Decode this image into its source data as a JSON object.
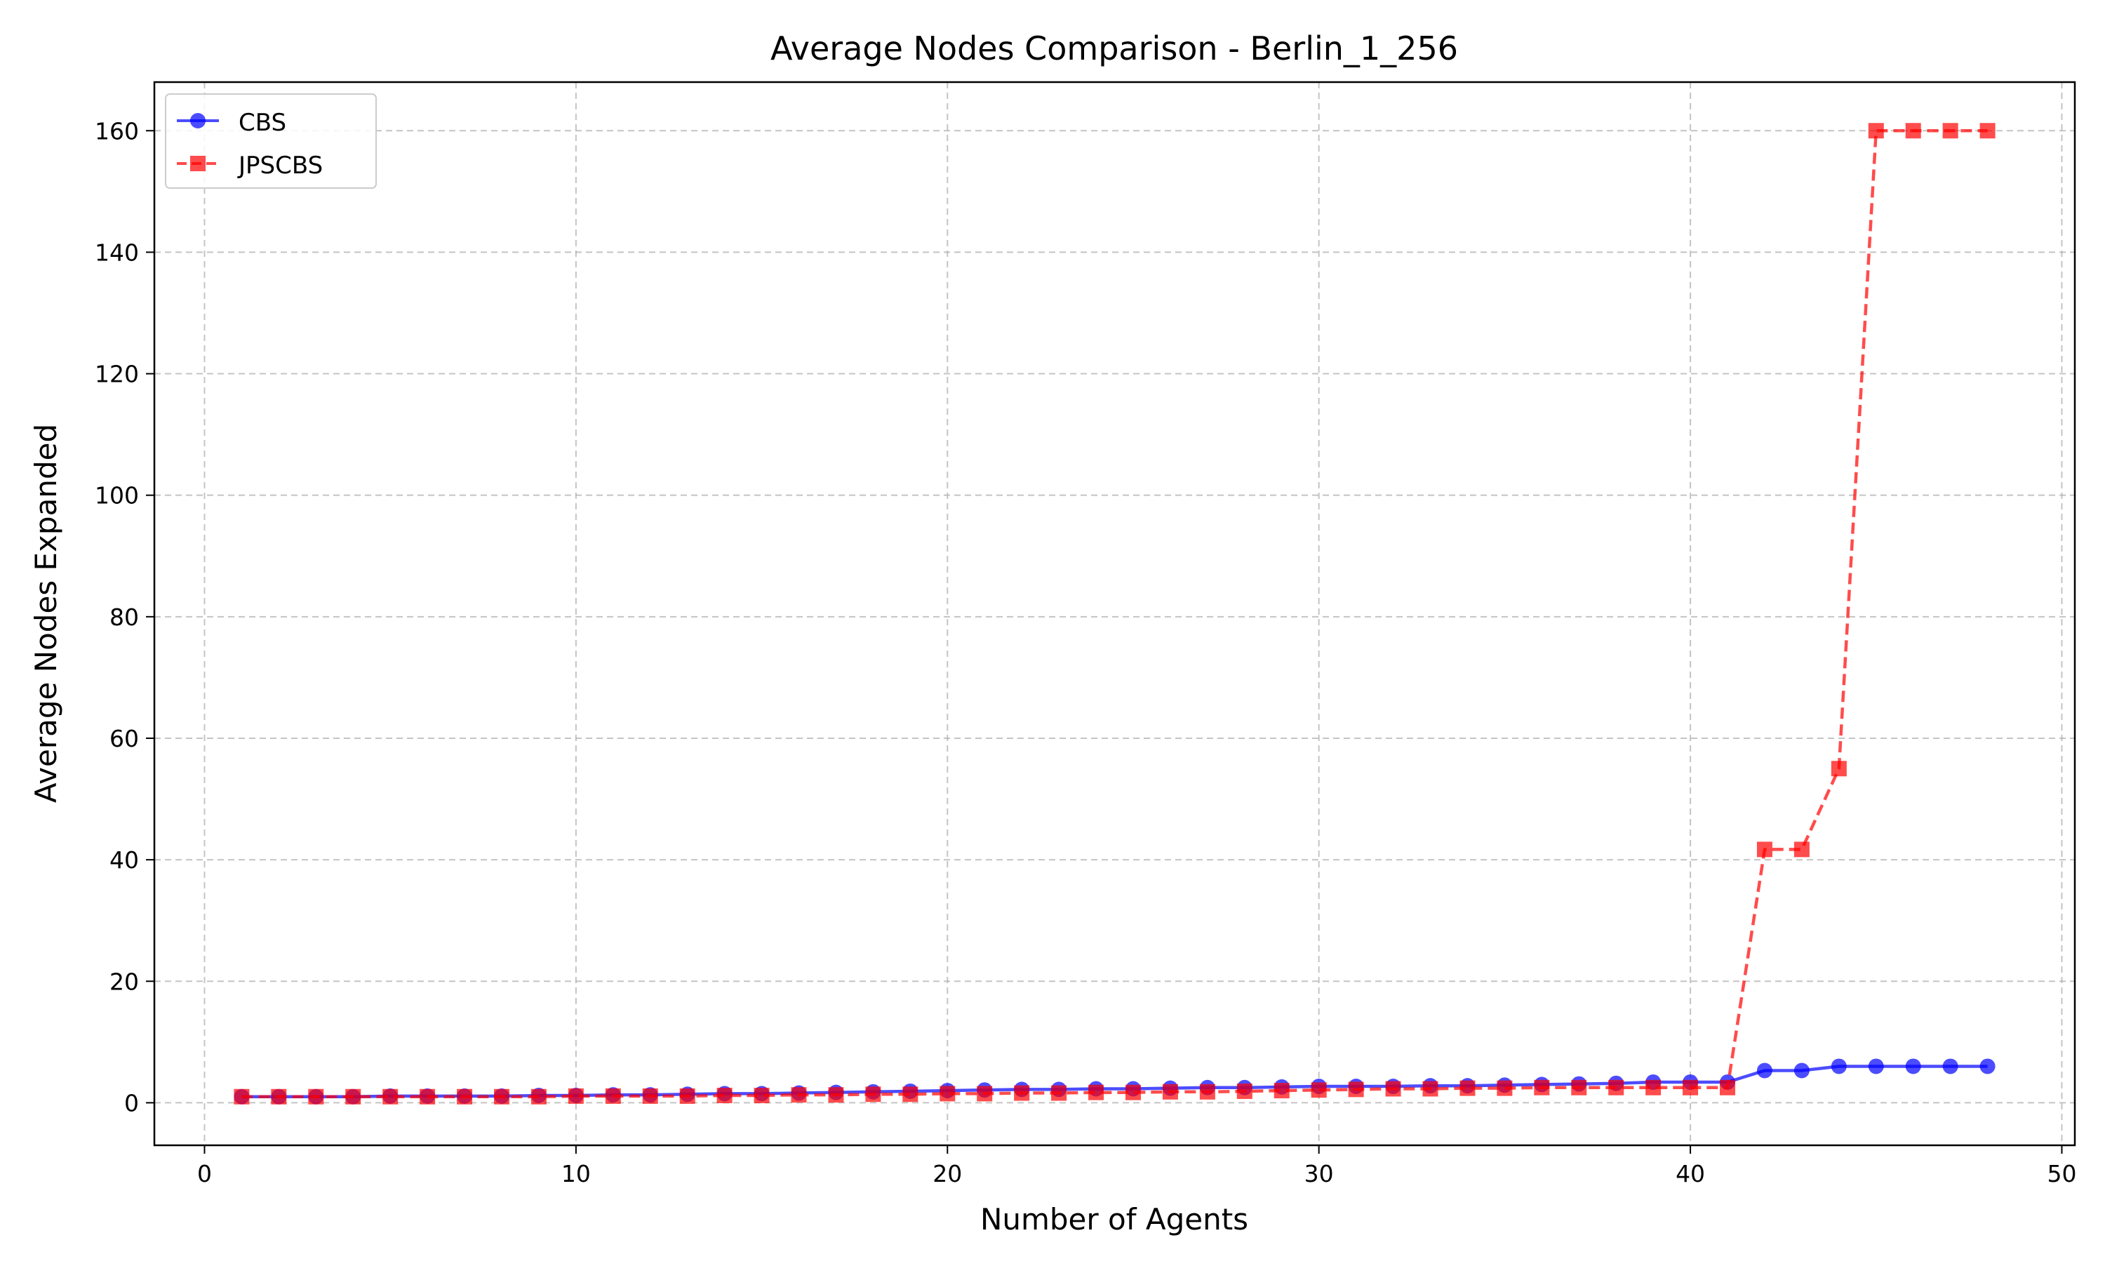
{
  "chart_data": {
    "type": "line",
    "title": "Average Nodes Comparison - Berlin_1_256",
    "xlabel": "Number of Agents",
    "ylabel": "Average Nodes Expanded",
    "xlim": [
      -1.35,
      50.35
    ],
    "ylim": [
      -7,
      168
    ],
    "xticks": [
      0,
      10,
      20,
      30,
      40,
      50
    ],
    "yticks": [
      0,
      20,
      40,
      60,
      80,
      100,
      120,
      140,
      160
    ],
    "grid": true,
    "legend_position": "top-left",
    "x": [
      1,
      2,
      3,
      4,
      5,
      6,
      7,
      8,
      9,
      10,
      11,
      12,
      13,
      14,
      15,
      16,
      17,
      18,
      19,
      20,
      21,
      22,
      23,
      24,
      25,
      26,
      27,
      28,
      29,
      30,
      31,
      32,
      33,
      34,
      35,
      36,
      37,
      38,
      39,
      40,
      41,
      42,
      43,
      44,
      45,
      46,
      47,
      48
    ],
    "series": [
      {
        "name": "CBS",
        "color": "#0000ff",
        "line_style": "solid",
        "marker": "circle",
        "values": [
          1.0,
          1.0,
          1.0,
          1.0,
          1.1,
          1.1,
          1.1,
          1.1,
          1.2,
          1.2,
          1.3,
          1.3,
          1.4,
          1.5,
          1.5,
          1.6,
          1.7,
          1.8,
          1.9,
          2.0,
          2.1,
          2.2,
          2.2,
          2.3,
          2.3,
          2.4,
          2.5,
          2.5,
          2.6,
          2.7,
          2.7,
          2.7,
          2.8,
          2.8,
          2.9,
          3.0,
          3.1,
          3.2,
          3.4,
          3.4,
          3.4,
          5.3,
          5.3,
          6.0,
          6.0,
          6.0,
          6.0,
          6.0
        ]
      },
      {
        "name": "JPSCBS",
        "color": "#ff0000",
        "line_style": "dashed",
        "marker": "square",
        "values": [
          1.0,
          1.0,
          1.0,
          1.0,
          1.0,
          1.0,
          1.0,
          1.0,
          1.0,
          1.1,
          1.1,
          1.1,
          1.1,
          1.2,
          1.2,
          1.3,
          1.3,
          1.4,
          1.4,
          1.5,
          1.5,
          1.6,
          1.6,
          1.7,
          1.7,
          1.8,
          1.8,
          1.9,
          2.0,
          2.1,
          2.2,
          2.3,
          2.3,
          2.4,
          2.4,
          2.5,
          2.5,
          2.5,
          2.5,
          2.5,
          2.5,
          41.7,
          41.7,
          55.0,
          160.0,
          160.0,
          160.0,
          160.0
        ]
      }
    ]
  }
}
